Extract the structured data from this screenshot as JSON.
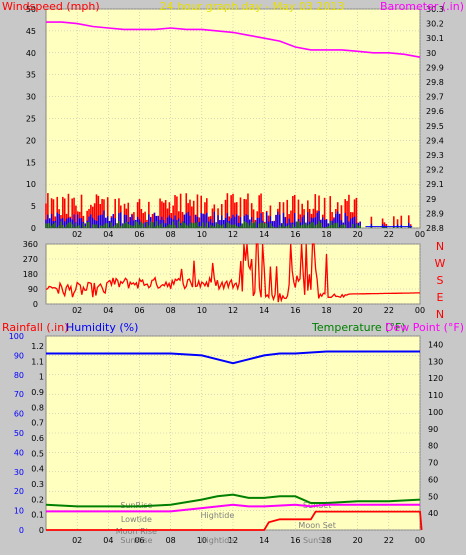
{
  "header": {
    "title": "24 hour graph day - May 03 2013",
    "left_label": "Windspeed (mph)",
    "right_label": "Barometer (.in)"
  },
  "colors": {
    "bg": "#c8c8c8",
    "plot_bg": "#ffffc0",
    "grid": "#b0b0b0",
    "red": "#ff0000",
    "magenta": "#ff00ff",
    "blue": "#0000ff",
    "green": "#008000",
    "darkgreen": "#007000",
    "title": "#e8e000",
    "annot": "#808080"
  },
  "chart_data": [
    {
      "type": "line",
      "name": "wind-barometer",
      "y_left": {
        "label": "Windspeed (mph)",
        "range": [
          0,
          50
        ],
        "ticks": [
          0,
          5,
          10,
          15,
          20,
          25,
          30,
          35,
          40,
          45,
          50
        ]
      },
      "y_right": {
        "label": "Barometer (.in)",
        "range": [
          28.8,
          30.3
        ],
        "ticks": [
          "28.8",
          "28.9",
          "29",
          "29.1",
          "29.2",
          "29.3",
          "29.4",
          "29.5",
          "29.6",
          "29.7",
          "29.8",
          "29.9",
          "30",
          "30.1",
          "30.2",
          "30.3"
        ]
      },
      "x_ticks": [
        "02",
        "04",
        "06",
        "08",
        "10",
        "12",
        "14",
        "16",
        "18",
        "20",
        "22",
        "00"
      ],
      "barometer": {
        "x": [
          0,
          1,
          2,
          3,
          4,
          5,
          6,
          7,
          8,
          9,
          10,
          11,
          12,
          13,
          14,
          15,
          16,
          17,
          18,
          19,
          20,
          21,
          22,
          23,
          24
        ],
        "y": [
          30.21,
          30.21,
          30.2,
          30.18,
          30.17,
          30.16,
          30.16,
          30.16,
          30.17,
          30.16,
          30.16,
          30.15,
          30.14,
          30.12,
          30.1,
          30.08,
          30.04,
          30.02,
          30.02,
          30.02,
          30.01,
          30.0,
          30.0,
          29.99,
          29.97
        ]
      },
      "gust_peak_max": 8,
      "avg_wind_level": 3
    },
    {
      "type": "line",
      "name": "wind-direction",
      "y_ticks": [
        "0",
        "90",
        "180",
        "270",
        "360"
      ],
      "y_range": [
        0,
        360
      ],
      "compass_labels": [
        "N",
        "W",
        "S",
        "E",
        "N"
      ],
      "x_ticks": [
        "02",
        "04",
        "06",
        "08",
        "10",
        "12",
        "14",
        "16",
        "18",
        "20",
        "22",
        "00"
      ]
    },
    {
      "type": "line",
      "name": "rain-humidity-temp",
      "left_labels": {
        "rain": "Rainfall (.in)",
        "humidity": "Humidity (%)"
      },
      "right_labels": {
        "temp": "Temperature (°F)",
        "dew": "Dew Point (°F)"
      },
      "y_left_ticks": [
        "0",
        "10",
        "20",
        "30",
        "40",
        "50",
        "60",
        "70",
        "80",
        "90",
        "100"
      ],
      "y_rain_ticks": [
        "0",
        "0.1",
        "0.2",
        "0.3",
        "0.4",
        "0.5",
        "0.6",
        "0.7",
        "0.8",
        "0.9",
        "1",
        "1.1",
        "1.2"
      ],
      "y_right_ticks": [
        "40",
        "50",
        "60",
        "70",
        "80",
        "90",
        "100",
        "110",
        "120",
        "130",
        "140"
      ],
      "y_right_range": [
        30,
        145
      ],
      "x_ticks": [
        "02",
        "04",
        "06",
        "08",
        "10",
        "12",
        "14",
        "16",
        "18",
        "20",
        "22",
        "00"
      ],
      "humidity": {
        "x": [
          0,
          2,
          4,
          6,
          8,
          10,
          11,
          12,
          13,
          14,
          15,
          16,
          18,
          20,
          22,
          24
        ],
        "y": [
          91,
          91,
          91,
          91,
          91,
          90,
          88,
          86,
          88,
          90,
          91,
          91,
          92,
          92,
          92,
          92
        ]
      },
      "temperature": {
        "x": [
          0,
          2,
          4,
          6,
          8,
          10,
          11,
          12,
          13,
          14,
          15,
          16,
          17,
          18,
          20,
          22,
          24
        ],
        "y": [
          45,
          44,
          44,
          44,
          45,
          48,
          50,
          51,
          49,
          49,
          50,
          50,
          46,
          46,
          47,
          47,
          48
        ]
      },
      "dewpoint": {
        "x": [
          0,
          2,
          4,
          6,
          8,
          10,
          12,
          13,
          14,
          16,
          17,
          18,
          20,
          22,
          24
        ],
        "y": [
          41,
          41,
          41,
          41,
          41,
          43,
          45,
          44,
          44,
          45,
          44,
          45,
          45,
          45,
          45
        ]
      },
      "rainfall": {
        "x": [
          0,
          14.0,
          14.3,
          15,
          17,
          17.3,
          24,
          24.1
        ],
        "y": [
          0,
          0,
          0.05,
          0.07,
          0.07,
          0.12,
          0.12,
          0
        ]
      },
      "annotations": {
        "sunrise": "SunRise",
        "sunset": "SunSet",
        "lowtide": "Lowtide",
        "hightide": "Hightide",
        "moonrise": "Moon Rise",
        "moonset": "Moon Set",
        "x_sunrise": "SunRise",
        "x_sunset": "SunSet",
        "x_hightide": "Hightide"
      }
    }
  ]
}
